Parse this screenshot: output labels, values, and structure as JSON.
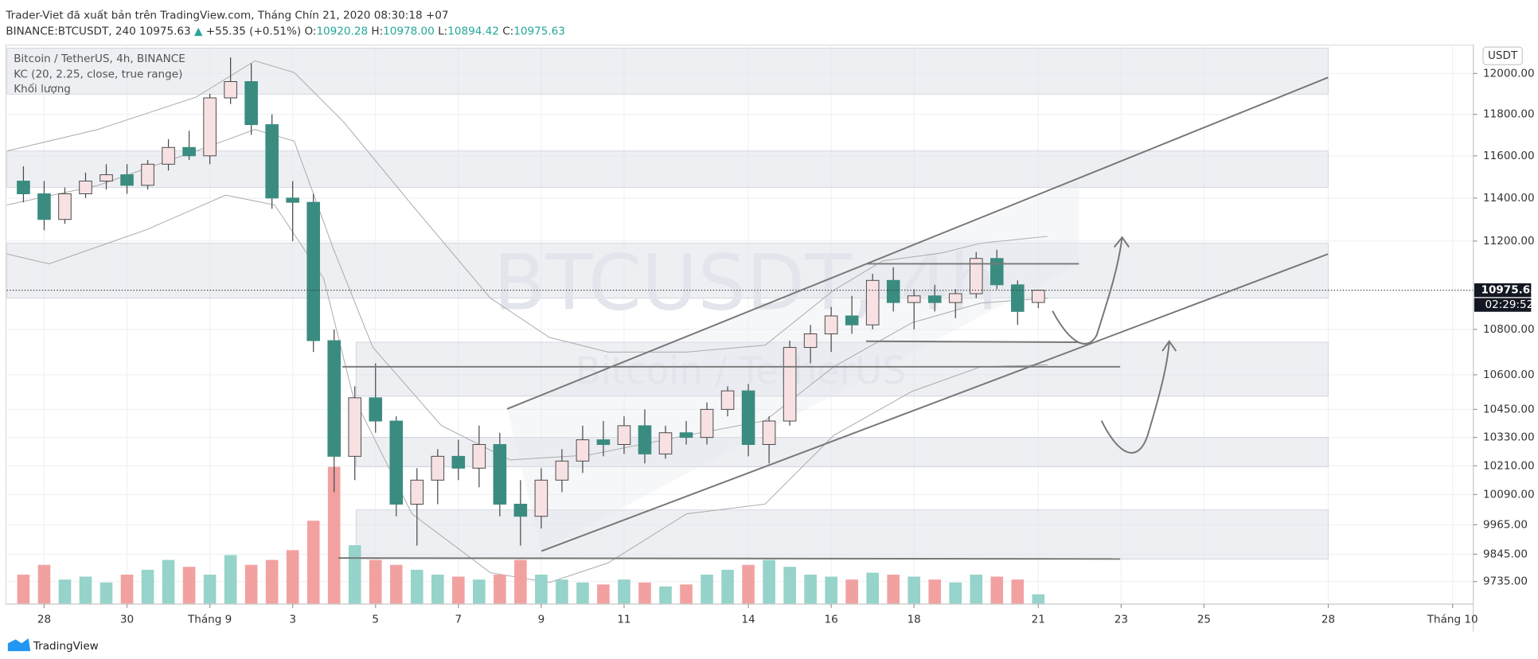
{
  "header": {
    "publisher": "Trader-Viet đã xuất bản trên TradingView.com, Tháng Chín 21, 2020 08:30:18 +07",
    "symbol": "BINANCE:BTCUSDT, 240 10975.63",
    "change_arrow": "▲",
    "change": "+55.35 (+0.51%)",
    "ohlc": [
      {
        "label": "O:",
        "value": "10920.28"
      },
      {
        "label": "H:",
        "value": "10978.00"
      },
      {
        "label": "L:",
        "value": "10894.42"
      },
      {
        "label": "C:",
        "value": "10975.63"
      }
    ]
  },
  "legend": [
    "Bitcoin / TetherUS, 4h, BINANCE",
    "KC (20, 2.25, close, true range)",
    "Khối lượng"
  ],
  "watermark": {
    "symbol": "BTCUSDT, 4h",
    "name": "Bitcoin / TetherUS"
  },
  "price_axis": {
    "currency": "USDT",
    "last_price": "10975.63",
    "countdown": "02:29:52"
  },
  "footer": {
    "brand": "TradingView"
  },
  "chart_data": {
    "type": "candlestick",
    "x": [
      -0.5,
      0,
      0.5,
      1,
      1.5,
      2,
      2.5,
      3,
      3.5,
      4,
      4.5,
      5,
      5.5,
      6,
      6.5,
      7,
      7.5,
      8,
      8.5,
      9,
      9.5,
      10,
      10.5,
      11,
      11.5,
      12,
      12.5,
      13,
      13.5,
      14,
      14.5,
      15,
      15.5,
      16,
      16.5,
      17,
      17.5,
      18,
      18.5,
      19,
      19.5,
      20,
      20.5,
      21,
      21.5,
      22,
      22.5,
      23,
      23.5,
      24
    ],
    "open": [
      11480,
      11420,
      11300,
      11420,
      11480,
      11510,
      11460,
      11560,
      11640,
      11600,
      11880,
      11960,
      11750,
      11400,
      11380,
      10750,
      10250,
      10500,
      10400,
      10050,
      10150,
      10250,
      10200,
      10300,
      10050,
      10000,
      10150,
      10230,
      10320,
      10300,
      10380,
      10260,
      10350,
      10330,
      10450,
      10530,
      10300,
      10400,
      10720,
      10780,
      10860,
      10820,
      11020,
      10920,
      10950,
      10920,
      10960,
      11120,
      11000,
      10920.28
    ],
    "high": [
      11550,
      11480,
      11450,
      11520,
      11560,
      11560,
      11580,
      11680,
      11720,
      11900,
      12080,
      12050,
      11800,
      11480,
      11420,
      10800,
      10550,
      10650,
      10420,
      10200,
      10280,
      10320,
      10380,
      10350,
      10150,
      10200,
      10280,
      10380,
      10400,
      10420,
      10450,
      10380,
      10400,
      10480,
      10550,
      10560,
      10420,
      10750,
      10820,
      10900,
      10950,
      11050,
      11080,
      10980,
      11000,
      10980,
      11150,
      11160,
      11020,
      10978
    ],
    "low": [
      11380,
      11250,
      11280,
      11400,
      11440,
      11420,
      11440,
      11530,
      11580,
      11560,
      11850,
      11700,
      11350,
      11200,
      10700,
      10100,
      10150,
      10350,
      10000,
      9880,
      10050,
      10150,
      10120,
      10000,
      9880,
      9950,
      10100,
      10180,
      10250,
      10260,
      10220,
      10240,
      10300,
      10300,
      10420,
      10250,
      10220,
      10380,
      10650,
      10700,
      10780,
      10800,
      10880,
      10800,
      10880,
      10850,
      10940,
      10980,
      10820,
      10894.42
    ],
    "close": [
      11420,
      11300,
      11420,
      11480,
      11510,
      11460,
      11560,
      11640,
      11600,
      11880,
      11960,
      11750,
      11400,
      11380,
      10750,
      10250,
      10500,
      10400,
      10050,
      10150,
      10250,
      10200,
      10300,
      10050,
      10000,
      10150,
      10230,
      10320,
      10300,
      10380,
      10260,
      10350,
      10330,
      10450,
      10530,
      10300,
      10400,
      10720,
      10780,
      10860,
      10820,
      11020,
      10920,
      10950,
      10920,
      10960,
      11120,
      11000,
      10880,
      10975.63
    ],
    "volume": [
      30,
      40,
      25,
      28,
      22,
      30,
      35,
      45,
      38,
      30,
      50,
      40,
      45,
      55,
      85,
      140,
      60,
      45,
      40,
      35,
      30,
      28,
      25,
      30,
      45,
      30,
      25,
      22,
      20,
      25,
      22,
      18,
      20,
      30,
      35,
      40,
      45,
      38,
      30,
      28,
      25,
      32,
      30,
      28,
      25,
      22,
      30,
      28,
      25,
      10
    ],
    "xlim": [
      -0.9,
      34.5
    ],
    "xticks": [
      {
        "value": 0,
        "label": "28"
      },
      {
        "value": 2,
        "label": "30"
      },
      {
        "value": 4,
        "label": "Tháng 9"
      },
      {
        "value": 6,
        "label": "3"
      },
      {
        "value": 8,
        "label": "5"
      },
      {
        "value": 10,
        "label": "7"
      },
      {
        "value": 12,
        "label": "9"
      },
      {
        "value": 14,
        "label": "11"
      },
      {
        "value": 17,
        "label": "14"
      },
      {
        "value": 19,
        "label": "16"
      },
      {
        "value": 21,
        "label": "18"
      },
      {
        "value": 24,
        "label": "21"
      },
      {
        "value": 26,
        "label": "23"
      },
      {
        "value": 28,
        "label": "25"
      },
      {
        "value": 31,
        "label": "28"
      },
      {
        "value": 34,
        "label": "Tháng 10"
      }
    ],
    "ylim": [
      9645,
      12141
    ],
    "yticks": [
      {
        "value": 9735,
        "label": "9735.00"
      },
      {
        "value": 9845,
        "label": "9845.00"
      },
      {
        "value": 9965,
        "label": "9965.00"
      },
      {
        "value": 10090,
        "label": "10090.00"
      },
      {
        "value": 10210,
        "label": "10210.00"
      },
      {
        "value": 10330,
        "label": "10330.00"
      },
      {
        "value": 10450,
        "label": "10450.00"
      },
      {
        "value": 10600,
        "label": "10600.00"
      },
      {
        "value": 10800,
        "label": "10800.00"
      },
      {
        "value": 11200,
        "label": "11200.00"
      },
      {
        "value": 11400,
        "label": "11400.00"
      },
      {
        "value": 11600,
        "label": "11600.00"
      },
      {
        "value": 11800,
        "label": "11800.00"
      },
      {
        "value": 12000,
        "label": "12000.00"
      }
    ],
    "log_scale": true,
    "grid": true,
    "up_color": "#f7e1e3",
    "down_color": "#3b8c80",
    "wick_color": "#4a4a4a",
    "volume_up_color": "#96d3ca",
    "volume_down_color": "#f2a1a1"
  }
}
